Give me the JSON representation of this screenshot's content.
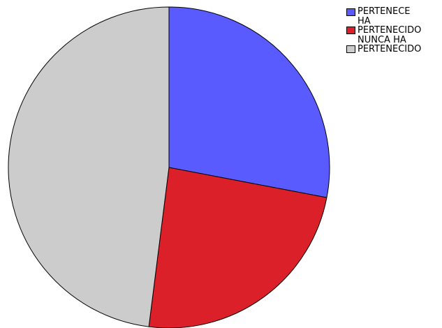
{
  "chart_data": {
    "type": "pie",
    "categories": [
      "PERTENECE",
      "HA\nPERTENECIDO",
      "NUNCA HA\nPERTENECIDO"
    ],
    "values": [
      28,
      24,
      48
    ],
    "colors": [
      "#5a5bff",
      "#dc2029",
      "#cccccc"
    ],
    "start_angle_deg": 0,
    "direction": "clockwise",
    "legend_position": "top-right",
    "title": "",
    "xlabel": "",
    "ylabel": ""
  }
}
